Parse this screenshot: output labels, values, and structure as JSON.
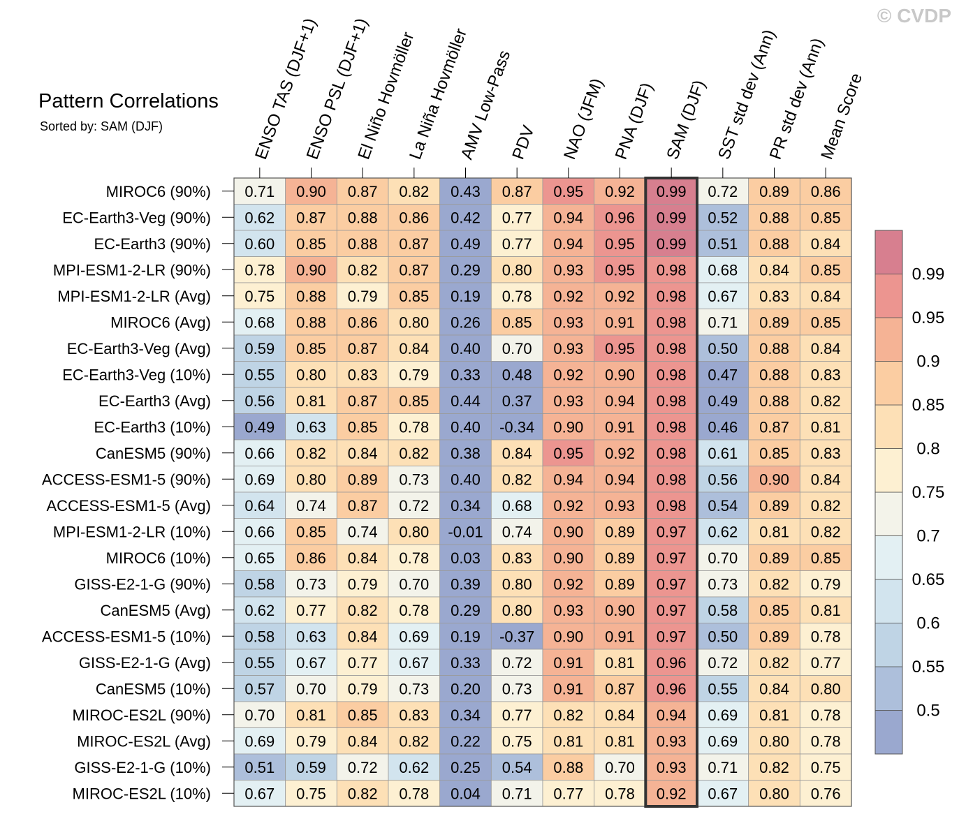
{
  "watermark": "© CVDP",
  "chart_data": {
    "type": "heatmap",
    "title": "Pattern Correlations",
    "subtitle": "Sorted by: SAM (DJF)",
    "highlight_column": "SAM (DJF)",
    "columns": [
      "ENSO TAS (DJF+1)",
      "ENSO PSL (DJF+1)",
      "El Niño Hovmöller",
      "La Niña Hovmöller",
      "AMV Low-Pass",
      "PDV",
      "NAO (JFM)",
      "PNA (DJF)",
      "SAM (DJF)",
      "SST std dev (Ann)",
      "PR std dev (Ann)",
      "Mean Score"
    ],
    "rows": [
      {
        "name": "MIROC6 (90%)",
        "values": [
          "0.71",
          "0.90",
          "0.87",
          "0.82",
          "0.43",
          "0.87",
          "0.95",
          "0.92",
          "0.99",
          "0.72",
          "0.89",
          "0.86"
        ]
      },
      {
        "name": "EC-Earth3-Veg (90%)",
        "values": [
          "0.62",
          "0.87",
          "0.88",
          "0.86",
          "0.42",
          "0.77",
          "0.94",
          "0.96",
          "0.99",
          "0.52",
          "0.88",
          "0.85"
        ]
      },
      {
        "name": "EC-Earth3 (90%)",
        "values": [
          "0.60",
          "0.85",
          "0.88",
          "0.87",
          "0.49",
          "0.77",
          "0.94",
          "0.95",
          "0.99",
          "0.51",
          "0.88",
          "0.84"
        ]
      },
      {
        "name": "MPI-ESM1-2-LR (90%)",
        "values": [
          "0.78",
          "0.90",
          "0.82",
          "0.87",
          "0.29",
          "0.80",
          "0.93",
          "0.95",
          "0.98",
          "0.68",
          "0.84",
          "0.85"
        ]
      },
      {
        "name": "MPI-ESM1-2-LR (Avg)",
        "values": [
          "0.75",
          "0.88",
          "0.79",
          "0.85",
          "0.19",
          "0.78",
          "0.92",
          "0.92",
          "0.98",
          "0.67",
          "0.83",
          "0.84"
        ]
      },
      {
        "name": "MIROC6 (Avg)",
        "values": [
          "0.68",
          "0.88",
          "0.86",
          "0.80",
          "0.26",
          "0.85",
          "0.93",
          "0.91",
          "0.98",
          "0.71",
          "0.89",
          "0.85"
        ]
      },
      {
        "name": "EC-Earth3-Veg (Avg)",
        "values": [
          "0.59",
          "0.85",
          "0.87",
          "0.84",
          "0.40",
          "0.70",
          "0.93",
          "0.95",
          "0.98",
          "0.50",
          "0.88",
          "0.84"
        ]
      },
      {
        "name": "EC-Earth3-Veg (10%)",
        "values": [
          "0.55",
          "0.80",
          "0.83",
          "0.79",
          "0.33",
          "0.48",
          "0.92",
          "0.90",
          "0.98",
          "0.47",
          "0.88",
          "0.83"
        ]
      },
      {
        "name": "EC-Earth3 (Avg)",
        "values": [
          "0.56",
          "0.81",
          "0.87",
          "0.85",
          "0.44",
          "0.37",
          "0.93",
          "0.94",
          "0.98",
          "0.49",
          "0.88",
          "0.82"
        ]
      },
      {
        "name": "EC-Earth3 (10%)",
        "values": [
          "0.49",
          "0.63",
          "0.85",
          "0.78",
          "0.40",
          "-0.34",
          "0.90",
          "0.91",
          "0.98",
          "0.46",
          "0.87",
          "0.81"
        ]
      },
      {
        "name": "CanESM5 (90%)",
        "values": [
          "0.66",
          "0.82",
          "0.84",
          "0.82",
          "0.38",
          "0.84",
          "0.95",
          "0.92",
          "0.98",
          "0.61",
          "0.85",
          "0.83"
        ]
      },
      {
        "name": "ACCESS-ESM1-5 (90%)",
        "values": [
          "0.69",
          "0.80",
          "0.89",
          "0.73",
          "0.40",
          "0.82",
          "0.94",
          "0.94",
          "0.98",
          "0.56",
          "0.90",
          "0.84"
        ]
      },
      {
        "name": "ACCESS-ESM1-5 (Avg)",
        "values": [
          "0.64",
          "0.74",
          "0.87",
          "0.72",
          "0.34",
          "0.68",
          "0.92",
          "0.93",
          "0.98",
          "0.54",
          "0.89",
          "0.82"
        ]
      },
      {
        "name": "MPI-ESM1-2-LR (10%)",
        "values": [
          "0.66",
          "0.85",
          "0.74",
          "0.80",
          "-0.01",
          "0.74",
          "0.90",
          "0.89",
          "0.97",
          "0.62",
          "0.81",
          "0.82"
        ]
      },
      {
        "name": "MIROC6 (10%)",
        "values": [
          "0.65",
          "0.86",
          "0.84",
          "0.78",
          "0.03",
          "0.83",
          "0.90",
          "0.89",
          "0.97",
          "0.70",
          "0.89",
          "0.85"
        ]
      },
      {
        "name": "GISS-E2-1-G (90%)",
        "values": [
          "0.58",
          "0.73",
          "0.79",
          "0.70",
          "0.39",
          "0.80",
          "0.92",
          "0.89",
          "0.97",
          "0.73",
          "0.82",
          "0.79"
        ]
      },
      {
        "name": "CanESM5 (Avg)",
        "values": [
          "0.62",
          "0.77",
          "0.82",
          "0.78",
          "0.29",
          "0.80",
          "0.93",
          "0.90",
          "0.97",
          "0.58",
          "0.85",
          "0.81"
        ]
      },
      {
        "name": "ACCESS-ESM1-5 (10%)",
        "values": [
          "0.58",
          "0.63",
          "0.84",
          "0.69",
          "0.19",
          "-0.37",
          "0.90",
          "0.91",
          "0.97",
          "0.50",
          "0.89",
          "0.78"
        ]
      },
      {
        "name": "GISS-E2-1-G (Avg)",
        "values": [
          "0.55",
          "0.67",
          "0.77",
          "0.67",
          "0.33",
          "0.72",
          "0.91",
          "0.81",
          "0.96",
          "0.72",
          "0.82",
          "0.77"
        ]
      },
      {
        "name": "CanESM5 (10%)",
        "values": [
          "0.57",
          "0.70",
          "0.79",
          "0.73",
          "0.20",
          "0.73",
          "0.91",
          "0.87",
          "0.96",
          "0.55",
          "0.84",
          "0.80"
        ]
      },
      {
        "name": "MIROC-ES2L (90%)",
        "values": [
          "0.70",
          "0.81",
          "0.85",
          "0.83",
          "0.34",
          "0.77",
          "0.82",
          "0.84",
          "0.94",
          "0.69",
          "0.81",
          "0.78"
        ]
      },
      {
        "name": "MIROC-ES2L (Avg)",
        "values": [
          "0.69",
          "0.79",
          "0.84",
          "0.82",
          "0.22",
          "0.75",
          "0.81",
          "0.81",
          "0.93",
          "0.69",
          "0.80",
          "0.78"
        ]
      },
      {
        "name": "GISS-E2-1-G (10%)",
        "values": [
          "0.51",
          "0.59",
          "0.72",
          "0.62",
          "0.25",
          "0.54",
          "0.88",
          "0.70",
          "0.93",
          "0.71",
          "0.82",
          "0.75"
        ]
      },
      {
        "name": "MIROC-ES2L (10%)",
        "values": [
          "0.67",
          "0.75",
          "0.82",
          "0.78",
          "0.04",
          "0.71",
          "0.77",
          "0.78",
          "0.92",
          "0.67",
          "0.80",
          "0.76"
        ]
      }
    ],
    "colorbar": {
      "boundaries": [
        0.5,
        0.55,
        0.6,
        0.65,
        0.7,
        0.75,
        0.8,
        0.85,
        0.9,
        0.95,
        0.99
      ],
      "labels": [
        "0.5",
        "0.55",
        "0.6",
        "0.65",
        "0.7",
        "0.75",
        "0.8",
        "0.85",
        "0.9",
        "0.95",
        "0.99"
      ],
      "colors": [
        "#9aa8cf",
        "#adbfdb",
        "#bfd4e5",
        "#d2e4ee",
        "#e3f0f3",
        "#f3f3ea",
        "#fdf0d2",
        "#fde0b6",
        "#fbcda2",
        "#f5b395",
        "#ec9590",
        "#d77f8f"
      ]
    }
  }
}
